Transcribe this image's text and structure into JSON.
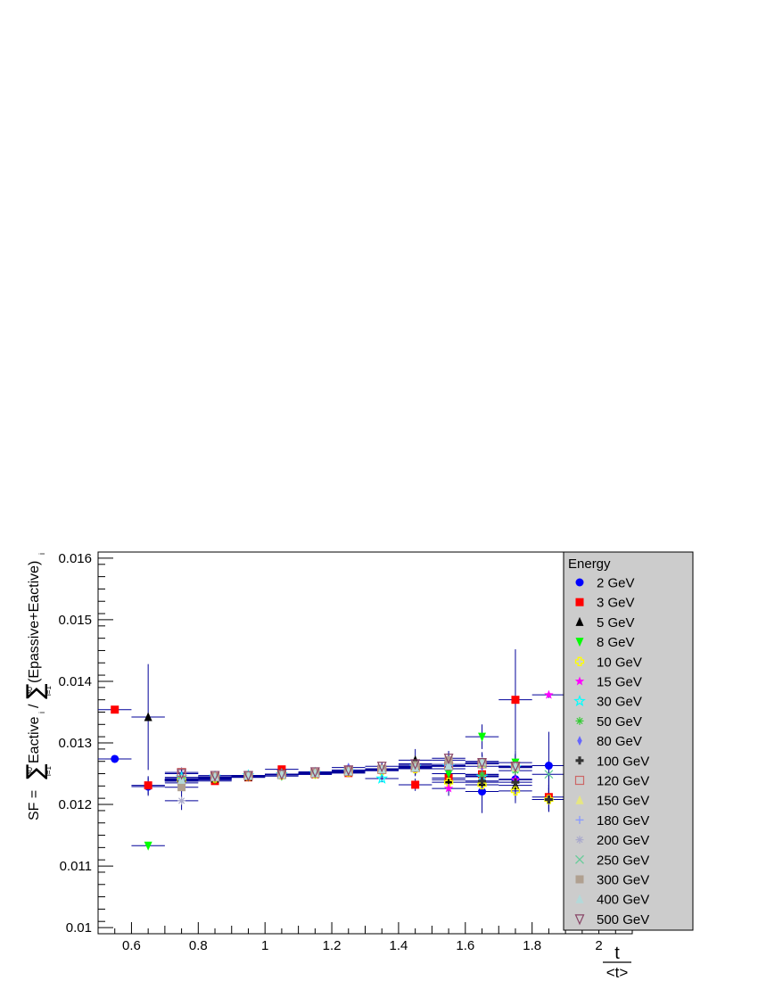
{
  "chart_data": {
    "type": "scatter",
    "ylabel_parts": {
      "prefix": "SF = ",
      "numerator": "Eactive",
      "denominator": "(Epassive+Eactive)",
      "sum_lower": "i=1",
      "sum_upper": "30",
      "index": "i"
    },
    "xlabel_parts": {
      "numerator": "t",
      "denominator": "<t>"
    },
    "xlim": [
      0.5,
      2.1
    ],
    "ylim": [
      0.0099,
      0.0161
    ],
    "xticks": [
      "0.6",
      "0.8",
      "1",
      "1.2",
      "1.4",
      "1.6",
      "1.8",
      "2"
    ],
    "yticks": [
      "0.01",
      "0.011",
      "0.012",
      "0.013",
      "0.014",
      "0.015",
      "0.016"
    ],
    "legend_title": "Energy",
    "legend_position": "right",
    "series": [
      {
        "name": "2 GeV",
        "color": "#0000ff",
        "marker": "circle",
        "x": [
          0.55,
          0.65,
          0.75,
          0.85,
          0.95,
          1.05,
          1.15,
          1.25,
          1.35,
          1.45,
          1.55,
          1.65,
          1.75,
          1.85
        ],
        "y": [
          0.01274,
          0.01229,
          0.01241,
          0.0124,
          0.01244,
          0.01248,
          0.01249,
          0.01252,
          0.01255,
          0.01258,
          0.01263,
          0.01221,
          0.01241,
          0.01263
        ],
        "yerr": [
          3e-06,
          0.00015,
          0.00015,
          5e-05,
          4e-05,
          4e-05,
          4e-05,
          5e-05,
          8e-05,
          0.00012,
          0.00015,
          0.00035,
          0.0003,
          0.00055
        ]
      },
      {
        "name": "3 GeV",
        "color": "#ff0000",
        "marker": "square",
        "x": [
          0.55,
          0.65,
          0.75,
          0.85,
          0.95,
          1.05,
          1.15,
          1.25,
          1.35,
          1.45,
          1.55,
          1.65,
          1.75,
          1.85
        ],
        "y": [
          0.01354,
          0.01231,
          0.0124,
          0.01238,
          0.01244,
          0.01257,
          0.01249,
          0.01251,
          0.01256,
          0.01232,
          0.01243,
          0.01249,
          0.0137,
          0.01212
        ],
        "yerr": [
          5e-06,
          0.00015,
          0.0001,
          4e-05,
          3e-05,
          4e-05,
          4e-05,
          6e-05,
          8e-05,
          0.0001,
          0.00015,
          0.0002,
          0.00082,
          0.0002
        ]
      },
      {
        "name": "5 GeV",
        "color": "#000000",
        "marker": "triangle-up",
        "x": [
          0.65,
          0.75,
          0.85,
          0.95,
          1.05,
          1.15,
          1.25,
          1.35,
          1.45,
          1.55,
          1.65,
          1.75
        ],
        "y": [
          0.01342,
          0.01238,
          0.01242,
          0.01245,
          0.01248,
          0.01251,
          0.01253,
          0.01258,
          0.01272,
          0.0124,
          0.01236,
          0.01231
        ],
        "yerr": [
          0.00086,
          0.00012,
          4e-05,
          4e-05,
          4e-05,
          4e-05,
          6e-05,
          8e-05,
          0.00018,
          0.00015,
          0.0002,
          0.00025
        ]
      },
      {
        "name": "8 GeV",
        "color": "#00ff00",
        "marker": "triangle-down",
        "x": [
          0.65,
          0.75,
          0.85,
          0.95,
          1.05,
          1.15,
          1.25,
          1.35,
          1.45,
          1.55,
          1.65,
          1.75
        ],
        "y": [
          0.01133,
          0.01235,
          0.01241,
          0.01245,
          0.01246,
          0.01249,
          0.01252,
          0.01257,
          0.0126,
          0.0125,
          0.0131,
          0.01268
        ],
        "yerr": [
          5e-06,
          0.0001,
          4e-05,
          4e-05,
          4e-05,
          4e-05,
          5e-05,
          7e-05,
          0.0001,
          0.00012,
          0.0002,
          0.0002
        ]
      },
      {
        "name": "10 GeV",
        "color": "#ffff00",
        "marker": "open-cross",
        "x": [
          0.75,
          0.85,
          0.95,
          1.05,
          1.15,
          1.25,
          1.35,
          1.45,
          1.55,
          1.65,
          1.75,
          1.85
        ],
        "y": [
          0.0124,
          0.01243,
          0.01246,
          0.01248,
          0.0125,
          0.01253,
          0.01255,
          0.01258,
          0.01236,
          0.01232,
          0.01222,
          0.01208
        ],
        "yerr": [
          8e-05,
          4e-05,
          4e-05,
          4e-05,
          4e-05,
          5e-05,
          6e-05,
          0.0001,
          0.00012,
          0.0002,
          0.0002,
          0.0002
        ]
      },
      {
        "name": "15 GeV",
        "color": "#ff00ff",
        "marker": "star",
        "x": [
          0.75,
          0.85,
          0.95,
          1.05,
          1.15,
          1.25,
          1.35,
          1.45,
          1.55,
          1.65,
          1.75,
          1.85
        ],
        "y": [
          0.01242,
          0.01244,
          0.01246,
          0.01249,
          0.01251,
          0.01253,
          0.01256,
          0.01259,
          0.01226,
          0.01246,
          0.0124,
          0.01378
        ],
        "yerr": [
          8e-05,
          4e-05,
          4e-05,
          4e-05,
          4e-05,
          5e-05,
          6e-05,
          0.0001,
          0.00012,
          0.00015,
          0.0002,
          5e-05
        ]
      },
      {
        "name": "30 GeV",
        "color": "#00ffff",
        "marker": "open-star",
        "x": [
          0.75,
          0.85,
          0.95,
          1.05,
          1.15,
          1.25,
          1.35,
          1.45,
          1.55,
          1.65,
          1.75
        ],
        "y": [
          0.01244,
          0.01245,
          0.01247,
          0.01249,
          0.01251,
          0.01254,
          0.01242,
          0.01261,
          0.01262,
          0.01245,
          0.0126
        ],
        "yerr": [
          8e-05,
          4e-05,
          4e-05,
          4e-05,
          4e-05,
          5e-05,
          6e-05,
          0.0001,
          0.00012,
          0.00015,
          0.0002
        ]
      },
      {
        "name": "50 GeV",
        "color": "#33cc33",
        "marker": "asterisk",
        "x": [
          0.75,
          0.85,
          0.95,
          1.05,
          1.15,
          1.25,
          1.35,
          1.45,
          1.55,
          1.65,
          1.75
        ],
        "y": [
          0.0124,
          0.01245,
          0.01247,
          0.01249,
          0.01251,
          0.01254,
          0.01256,
          0.0126,
          0.01258,
          0.01248,
          0.01255
        ],
        "yerr": [
          8e-05,
          4e-05,
          4e-05,
          4e-05,
          4e-05,
          5e-05,
          6e-05,
          0.0001,
          0.00012,
          0.00015,
          0.0002
        ]
      },
      {
        "name": "80 GeV",
        "color": "#6666ff",
        "marker": "diamond",
        "x": [
          0.75,
          0.85,
          0.95,
          1.05,
          1.15,
          1.25,
          1.35,
          1.45,
          1.55,
          1.65,
          1.75
        ],
        "y": [
          0.01238,
          0.01244,
          0.01247,
          0.01249,
          0.01251,
          0.0126,
          0.01257,
          0.01262,
          0.01263,
          0.01262,
          0.01262
        ],
        "yerr": [
          8e-05,
          4e-05,
          4e-05,
          4e-05,
          4e-05,
          5e-05,
          6e-05,
          0.0001,
          0.00012,
          0.00015,
          0.0002
        ]
      },
      {
        "name": "100 GeV",
        "color": "#333333",
        "marker": "cross",
        "x": [
          0.75,
          0.85,
          0.95,
          1.05,
          1.15,
          1.25,
          1.35,
          1.45,
          1.55,
          1.65,
          1.75,
          1.85
        ],
        "y": [
          0.01238,
          0.01244,
          0.01246,
          0.01249,
          0.01251,
          0.01253,
          0.01256,
          0.01259,
          0.01262,
          0.01238,
          0.01236,
          0.01208
        ],
        "yerr": [
          8e-05,
          4e-05,
          4e-05,
          4e-05,
          4e-05,
          5e-05,
          6e-05,
          0.0001,
          0.00012,
          0.00015,
          0.0002,
          0.0002
        ]
      },
      {
        "name": "120 GeV",
        "color": "#cc6666",
        "marker": "open-square",
        "x": [
          0.75,
          0.85,
          0.95,
          1.05,
          1.15,
          1.25,
          1.35,
          1.45,
          1.55,
          1.65,
          1.75
        ],
        "y": [
          0.01252,
          0.01245,
          0.01247,
          0.01249,
          0.01251,
          0.01254,
          0.01257,
          0.0126,
          0.01263,
          0.01266,
          0.01262
        ],
        "yerr": [
          8e-05,
          4e-05,
          4e-05,
          4e-05,
          4e-05,
          5e-05,
          6e-05,
          0.0001,
          0.00012,
          0.00015,
          0.0002
        ]
      },
      {
        "name": "150 GeV",
        "color": "#e6e680",
        "marker": "triangle-up",
        "x": [
          0.75,
          0.85,
          0.95,
          1.05,
          1.15,
          1.25,
          1.35,
          1.45,
          1.55,
          1.65,
          1.75
        ],
        "y": [
          0.01241,
          0.01245,
          0.01247,
          0.01249,
          0.01251,
          0.01254,
          0.01257,
          0.0126,
          0.01263,
          0.01266,
          0.0126
        ],
        "yerr": [
          8e-05,
          4e-05,
          4e-05,
          4e-05,
          4e-05,
          5e-05,
          6e-05,
          0.0001,
          0.00012,
          0.00015,
          0.0002
        ]
      },
      {
        "name": "180 GeV",
        "color": "#8899ff",
        "marker": "plus",
        "x": [
          0.75,
          0.85,
          0.95,
          1.05,
          1.15,
          1.25,
          1.35,
          1.45,
          1.55,
          1.65,
          1.75
        ],
        "y": [
          0.0124,
          0.01245,
          0.01247,
          0.01249,
          0.01251,
          0.01254,
          0.01257,
          0.0126,
          0.01263,
          0.01266,
          0.01262
        ],
        "yerr": [
          8e-05,
          4e-05,
          4e-05,
          4e-05,
          4e-05,
          5e-05,
          6e-05,
          0.0001,
          0.00012,
          0.00015,
          0.0002
        ]
      },
      {
        "name": "200 GeV",
        "color": "#aaaacc",
        "marker": "asterisk",
        "x": [
          0.75,
          0.85,
          0.95,
          1.05,
          1.15,
          1.25,
          1.35,
          1.45,
          1.55,
          1.65,
          1.75
        ],
        "y": [
          0.01206,
          0.01245,
          0.01247,
          0.01249,
          0.01251,
          0.01254,
          0.01257,
          0.01262,
          0.01265,
          0.01266,
          0.01262
        ],
        "yerr": [
          0.00015,
          4e-05,
          4e-05,
          4e-05,
          4e-05,
          5e-05,
          6e-05,
          0.0001,
          0.00012,
          0.00015,
          0.0002
        ]
      },
      {
        "name": "250 GeV",
        "color": "#66cc99",
        "marker": "x",
        "x": [
          0.75,
          0.85,
          0.95,
          1.05,
          1.15,
          1.25,
          1.35,
          1.45,
          1.55,
          1.65,
          1.75,
          1.85
        ],
        "y": [
          0.01238,
          0.01245,
          0.01247,
          0.01249,
          0.01251,
          0.01254,
          0.01257,
          0.0126,
          0.01263,
          0.01266,
          0.01262,
          0.01249
        ],
        "yerr": [
          8e-05,
          4e-05,
          4e-05,
          4e-05,
          4e-05,
          5e-05,
          6e-05,
          0.0001,
          0.00012,
          0.00015,
          0.0002,
          0.0002
        ]
      },
      {
        "name": "300 GeV",
        "color": "#b0a090",
        "marker": "square",
        "x": [
          0.75,
          0.85,
          0.95,
          1.05,
          1.15,
          1.25,
          1.35,
          1.45,
          1.55,
          1.65,
          1.75
        ],
        "y": [
          0.01228,
          0.01245,
          0.01247,
          0.01249,
          0.01251,
          0.01254,
          0.01257,
          0.01264,
          0.01272,
          0.01268,
          0.01262
        ],
        "yerr": [
          8e-05,
          4e-05,
          4e-05,
          4e-05,
          4e-05,
          5e-05,
          6e-05,
          0.0001,
          0.00012,
          0.00015,
          0.0002
        ]
      },
      {
        "name": "400 GeV",
        "color": "#b3d9d9",
        "marker": "triangle-up",
        "x": [
          0.75,
          0.85,
          0.95,
          1.05,
          1.15,
          1.25,
          1.35,
          1.45,
          1.55,
          1.65,
          1.75
        ],
        "y": [
          0.0124,
          0.01245,
          0.01247,
          0.01249,
          0.01251,
          0.01254,
          0.01257,
          0.0126,
          0.01263,
          0.0127,
          0.01262
        ],
        "yerr": [
          8e-05,
          4e-05,
          4e-05,
          4e-05,
          4e-05,
          5e-05,
          6e-05,
          0.0001,
          0.00012,
          0.00015,
          0.0002
        ]
      },
      {
        "name": "500 GeV",
        "color": "#884466",
        "marker": "open-triangle-down",
        "x": [
          0.75,
          0.85,
          0.95,
          1.05,
          1.15,
          1.25,
          1.35,
          1.45,
          1.55,
          1.65,
          1.75
        ],
        "y": [
          0.0125,
          0.01247,
          0.01247,
          0.01249,
          0.01253,
          0.01256,
          0.01262,
          0.01266,
          0.01275,
          0.01268,
          0.01262
        ],
        "yerr": [
          8e-05,
          4e-05,
          4e-05,
          4e-05,
          4e-05,
          5e-05,
          6e-05,
          0.0001,
          0.00012,
          0.00015,
          0.0002
        ]
      }
    ]
  }
}
